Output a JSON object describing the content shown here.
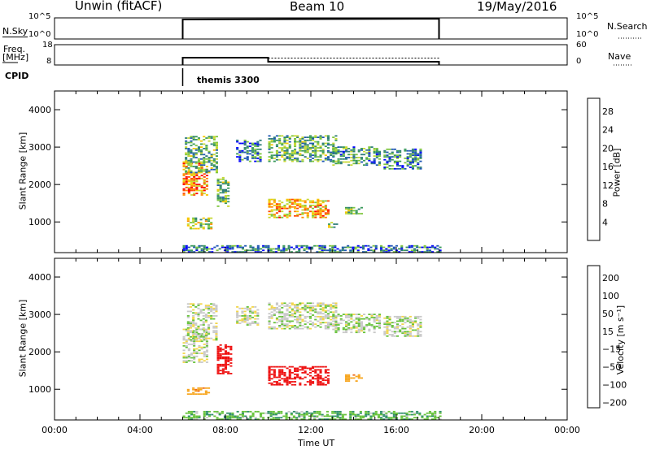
{
  "header": {
    "station": "Unwin (fitACF)",
    "beam": "Beam 10",
    "date": "19/May/2016"
  },
  "strips": {
    "nsky": {
      "label": "N.Sky",
      "ticks": [
        "10^5",
        "10^0"
      ],
      "right_ticks": [
        "10^5",
        "10^0"
      ],
      "right_label": "N.Search"
    },
    "freq": {
      "label_line1": "Freq.",
      "label_line2": "[MHz]",
      "ticks": [
        "18",
        "8"
      ],
      "right_ticks": [
        "60",
        "0"
      ],
      "right_label": "Nave"
    },
    "cpid": {
      "label": "CPID",
      "program": "themis 3300"
    }
  },
  "colors": {
    "power": [
      "#0000ff",
      "#1e56b4",
      "#2e7d78",
      "#3a9a5a",
      "#7fc63e",
      "#c7d832",
      "#f7c600",
      "#ff8c00",
      "#ff4a00",
      "#ff0000"
    ],
    "velocity": [
      "#1a1ad0",
      "#1f5fb0",
      "#2f8f6a",
      "#66c23a",
      "#c8c8c8",
      "#f2d64a",
      "#f7a51d",
      "#f06a14",
      "#ee1010"
    ]
  },
  "chart_data": [
    {
      "type": "heatmap",
      "ylabel": "Slant Range [km]",
      "xlim": [
        0,
        24
      ],
      "ylim": [
        180,
        4500
      ],
      "yticks": [
        "1000",
        "2000",
        "3000",
        "4000"
      ],
      "colorbar": {
        "label": "Power [dB]",
        "ticks": [
          "4",
          "8",
          "12",
          "16",
          "20",
          "24",
          "28"
        ]
      },
      "regions": [
        {
          "t": [
            6.0,
            7.2
          ],
          "r": [
            1700,
            2600
          ],
          "v": 24
        },
        {
          "t": [
            6.1,
            7.6
          ],
          "r": [
            2300,
            3300
          ],
          "v": 12
        },
        {
          "t": [
            6.2,
            7.4
          ],
          "r": [
            800,
            1100
          ],
          "v": 16
        },
        {
          "t": [
            7.6,
            8.2
          ],
          "r": [
            1400,
            2200
          ],
          "v": 14
        },
        {
          "t": [
            8.5,
            9.6
          ],
          "r": [
            2600,
            3200
          ],
          "v": 8
        },
        {
          "t": [
            10.0,
            13.2
          ],
          "r": [
            2600,
            3300
          ],
          "v": 12
        },
        {
          "t": [
            13.0,
            15.2
          ],
          "r": [
            2500,
            3000
          ],
          "v": 10
        },
        {
          "t": [
            10.0,
            12.8
          ],
          "r": [
            1100,
            1600
          ],
          "v": 22
        },
        {
          "t": [
            13.6,
            14.4
          ],
          "r": [
            1200,
            1400
          ],
          "v": 14
        },
        {
          "t": [
            12.8,
            13.2
          ],
          "r": [
            800,
            1000
          ],
          "v": 14
        },
        {
          "t": [
            15.4,
            17.2
          ],
          "r": [
            2400,
            2950
          ],
          "v": 8
        },
        {
          "t": [
            6.0,
            18.0
          ],
          "r": [
            180,
            380
          ],
          "v": 8
        }
      ]
    },
    {
      "type": "heatmap",
      "xlabel": "Time UT",
      "ylabel": "Slant Range [km]",
      "xlim": [
        0,
        24
      ],
      "ylim": [
        180,
        4500
      ],
      "yticks": [
        "1000",
        "2000",
        "3000",
        "4000"
      ],
      "xticks": [
        "00:00",
        "04:00",
        "08:00",
        "12:00",
        "16:00",
        "20:00",
        "00:00"
      ],
      "colorbar": {
        "label": "Velocity [m s⁻¹]",
        "ticks": [
          "200",
          "100",
          "50",
          "15",
          "-15",
          "-50",
          "-100",
          "-200"
        ]
      },
      "regions": [
        {
          "t": [
            6.0,
            7.2
          ],
          "r": [
            1700,
            2600
          ],
          "v": 0
        },
        {
          "t": [
            6.2,
            7.6
          ],
          "r": [
            2300,
            3300
          ],
          "v": 0
        },
        {
          "t": [
            7.6,
            8.3
          ],
          "r": [
            1400,
            2200
          ],
          "v": -250
        },
        {
          "t": [
            6.2,
            7.2
          ],
          "r": [
            850,
            1050
          ],
          "v": -80
        },
        {
          "t": [
            8.5,
            9.5
          ],
          "r": [
            2700,
            3200
          ],
          "v": 0
        },
        {
          "t": [
            10.0,
            13.2
          ],
          "r": [
            2600,
            3300
          ],
          "v": 0
        },
        {
          "t": [
            13.0,
            15.2
          ],
          "r": [
            2500,
            3000
          ],
          "v": 10
        },
        {
          "t": [
            10.0,
            12.8
          ],
          "r": [
            1100,
            1600
          ],
          "v": -250
        },
        {
          "t": [
            13.6,
            14.4
          ],
          "r": [
            1200,
            1400
          ],
          "v": -80
        },
        {
          "t": [
            15.4,
            17.2
          ],
          "r": [
            2400,
            2950
          ],
          "v": 0
        },
        {
          "t": [
            6.0,
            18.0
          ],
          "r": [
            180,
            400
          ],
          "v": 40
        }
      ]
    }
  ]
}
